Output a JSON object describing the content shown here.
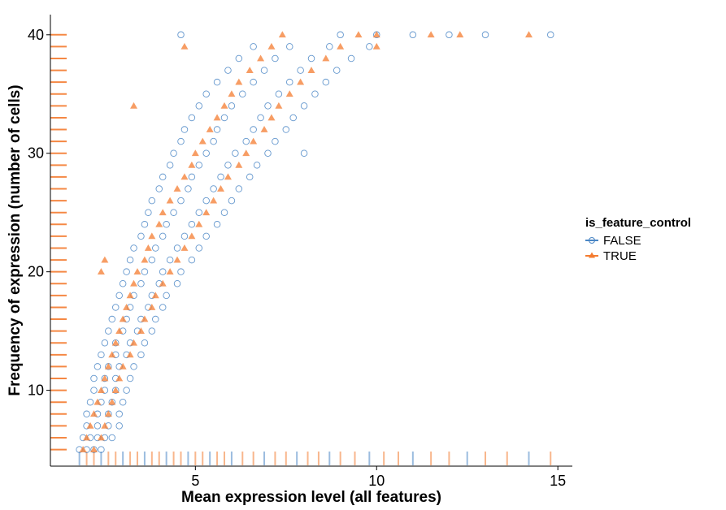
{
  "chart_data": {
    "type": "scatter",
    "xlabel": "Mean expression level (all features)",
    "ylabel": "Frequency of expression (number of cells)",
    "xlim": [
      1.0,
      15.4
    ],
    "ylim": [
      3.6,
      41.7
    ],
    "xticks": [
      5,
      10,
      15
    ],
    "yticks": [
      10,
      20,
      30,
      40
    ],
    "grid": false,
    "legend": {
      "title": "is_feature_control",
      "position": "right"
    },
    "colors": {
      "FALSE": "#4a86c5",
      "TRUE": "#f47c30"
    },
    "series": [
      {
        "name": "FALSE",
        "marker": "open-circle",
        "points": [
          [
            1.8,
            5
          ],
          [
            2.0,
            5
          ],
          [
            2.2,
            5
          ],
          [
            2.4,
            5
          ],
          [
            1.9,
            6
          ],
          [
            2.1,
            6
          ],
          [
            2.3,
            6
          ],
          [
            2.5,
            6
          ],
          [
            2.7,
            6
          ],
          [
            2.0,
            7
          ],
          [
            2.3,
            7
          ],
          [
            2.6,
            7
          ],
          [
            2.9,
            7
          ],
          [
            2.0,
            8
          ],
          [
            2.3,
            8
          ],
          [
            2.6,
            8
          ],
          [
            2.9,
            8
          ],
          [
            2.1,
            9
          ],
          [
            2.4,
            9
          ],
          [
            2.7,
            9
          ],
          [
            3.0,
            9
          ],
          [
            2.2,
            10
          ],
          [
            2.5,
            10
          ],
          [
            2.8,
            10
          ],
          [
            3.1,
            10
          ],
          [
            2.2,
            11
          ],
          [
            2.5,
            11
          ],
          [
            2.8,
            11
          ],
          [
            3.2,
            11
          ],
          [
            2.3,
            12
          ],
          [
            2.6,
            12
          ],
          [
            2.9,
            12
          ],
          [
            3.3,
            12
          ],
          [
            2.4,
            13
          ],
          [
            2.8,
            13
          ],
          [
            3.1,
            13
          ],
          [
            3.5,
            13
          ],
          [
            2.5,
            14
          ],
          [
            2.8,
            14
          ],
          [
            3.2,
            14
          ],
          [
            3.6,
            14
          ],
          [
            2.6,
            15
          ],
          [
            3.0,
            15
          ],
          [
            3.4,
            15
          ],
          [
            3.8,
            15
          ],
          [
            2.7,
            16
          ],
          [
            3.1,
            16
          ],
          [
            3.5,
            16
          ],
          [
            3.9,
            16
          ],
          [
            2.8,
            17
          ],
          [
            3.2,
            17
          ],
          [
            3.7,
            17
          ],
          [
            4.1,
            17
          ],
          [
            2.9,
            18
          ],
          [
            3.3,
            18
          ],
          [
            3.8,
            18
          ],
          [
            4.2,
            18
          ],
          [
            3.0,
            19
          ],
          [
            3.5,
            19
          ],
          [
            4.0,
            19
          ],
          [
            4.5,
            19
          ],
          [
            3.1,
            20
          ],
          [
            3.6,
            20
          ],
          [
            4.1,
            20
          ],
          [
            4.6,
            20
          ],
          [
            3.2,
            21
          ],
          [
            3.8,
            21
          ],
          [
            4.3,
            21
          ],
          [
            4.9,
            21
          ],
          [
            3.3,
            22
          ],
          [
            3.9,
            22
          ],
          [
            4.5,
            22
          ],
          [
            5.1,
            22
          ],
          [
            3.5,
            23
          ],
          [
            4.1,
            23
          ],
          [
            4.7,
            23
          ],
          [
            5.3,
            23
          ],
          [
            3.6,
            24
          ],
          [
            4.2,
            24
          ],
          [
            4.9,
            24
          ],
          [
            5.6,
            24
          ],
          [
            3.7,
            25
          ],
          [
            4.4,
            25
          ],
          [
            5.1,
            25
          ],
          [
            5.8,
            25
          ],
          [
            3.8,
            26
          ],
          [
            4.6,
            26
          ],
          [
            5.3,
            26
          ],
          [
            6.0,
            26
          ],
          [
            4.0,
            27
          ],
          [
            4.8,
            27
          ],
          [
            5.5,
            27
          ],
          [
            6.2,
            27
          ],
          [
            4.1,
            28
          ],
          [
            4.9,
            28
          ],
          [
            5.7,
            28
          ],
          [
            6.5,
            28
          ],
          [
            4.3,
            29
          ],
          [
            5.1,
            29
          ],
          [
            5.9,
            29
          ],
          [
            6.7,
            29
          ],
          [
            4.4,
            30
          ],
          [
            5.3,
            30
          ],
          [
            6.1,
            30
          ],
          [
            7.0,
            30
          ],
          [
            4.6,
            31
          ],
          [
            5.5,
            31
          ],
          [
            6.4,
            31
          ],
          [
            7.2,
            31
          ],
          [
            4.7,
            32
          ],
          [
            5.6,
            32
          ],
          [
            6.6,
            32
          ],
          [
            7.5,
            32
          ],
          [
            4.9,
            33
          ],
          [
            5.8,
            33
          ],
          [
            6.8,
            33
          ],
          [
            7.7,
            33
          ],
          [
            5.1,
            34
          ],
          [
            6.0,
            34
          ],
          [
            7.0,
            34
          ],
          [
            8.0,
            34
          ],
          [
            5.3,
            35
          ],
          [
            6.3,
            35
          ],
          [
            7.3,
            35
          ],
          [
            8.3,
            35
          ],
          [
            5.6,
            36
          ],
          [
            6.6,
            36
          ],
          [
            7.6,
            36
          ],
          [
            8.6,
            36
          ],
          [
            5.9,
            37
          ],
          [
            6.9,
            37
          ],
          [
            7.9,
            37
          ],
          [
            8.9,
            37
          ],
          [
            6.2,
            38
          ],
          [
            7.2,
            38
          ],
          [
            8.2,
            38
          ],
          [
            9.3,
            38
          ],
          [
            6.6,
            39
          ],
          [
            7.6,
            39
          ],
          [
            8.7,
            39
          ],
          [
            9.8,
            39
          ],
          [
            4.6,
            40
          ],
          [
            9.0,
            40
          ],
          [
            10.0,
            40
          ],
          [
            11.0,
            40
          ],
          [
            12.0,
            40
          ],
          [
            13.0,
            40
          ],
          [
            14.8,
            40
          ],
          [
            8.0,
            30
          ]
        ]
      },
      {
        "name": "TRUE",
        "marker": "filled-triangle",
        "points": [
          [
            1.9,
            5
          ],
          [
            2.2,
            5
          ],
          [
            2.0,
            6
          ],
          [
            2.4,
            6
          ],
          [
            2.1,
            7
          ],
          [
            2.5,
            7
          ],
          [
            2.2,
            8
          ],
          [
            2.6,
            8
          ],
          [
            2.3,
            9
          ],
          [
            2.7,
            9
          ],
          [
            2.4,
            10
          ],
          [
            2.8,
            10
          ],
          [
            2.5,
            11
          ],
          [
            2.9,
            11
          ],
          [
            2.6,
            12
          ],
          [
            3.0,
            12
          ],
          [
            2.7,
            13
          ],
          [
            3.2,
            13
          ],
          [
            2.8,
            14
          ],
          [
            3.3,
            14
          ],
          [
            2.9,
            15
          ],
          [
            3.5,
            15
          ],
          [
            3.0,
            16
          ],
          [
            3.6,
            16
          ],
          [
            3.1,
            17
          ],
          [
            3.8,
            17
          ],
          [
            3.2,
            18
          ],
          [
            3.9,
            18
          ],
          [
            3.3,
            19
          ],
          [
            4.1,
            19
          ],
          [
            2.4,
            20
          ],
          [
            3.4,
            20
          ],
          [
            4.3,
            20
          ],
          [
            2.5,
            21
          ],
          [
            3.6,
            21
          ],
          [
            4.5,
            21
          ],
          [
            3.7,
            22
          ],
          [
            4.7,
            22
          ],
          [
            3.8,
            23
          ],
          [
            4.9,
            23
          ],
          [
            4.0,
            24
          ],
          [
            5.1,
            24
          ],
          [
            4.1,
            25
          ],
          [
            5.3,
            25
          ],
          [
            4.3,
            26
          ],
          [
            5.5,
            26
          ],
          [
            4.5,
            27
          ],
          [
            5.7,
            27
          ],
          [
            4.7,
            28
          ],
          [
            5.9,
            28
          ],
          [
            4.9,
            29
          ],
          [
            6.2,
            29
          ],
          [
            5.0,
            30
          ],
          [
            6.4,
            30
          ],
          [
            5.2,
            31
          ],
          [
            6.6,
            31
          ],
          [
            5.4,
            32
          ],
          [
            6.9,
            32
          ],
          [
            5.6,
            33
          ],
          [
            7.1,
            33
          ],
          [
            5.8,
            34
          ],
          [
            7.3,
            34
          ],
          [
            3.3,
            34
          ],
          [
            6.0,
            35
          ],
          [
            7.6,
            35
          ],
          [
            6.2,
            36
          ],
          [
            7.9,
            36
          ],
          [
            6.5,
            37
          ],
          [
            8.2,
            37
          ],
          [
            6.8,
            38
          ],
          [
            8.6,
            38
          ],
          [
            4.7,
            39
          ],
          [
            7.1,
            39
          ],
          [
            9.0,
            39
          ],
          [
            7.4,
            40
          ],
          [
            9.5,
            40
          ],
          [
            10.0,
            40
          ],
          [
            11.5,
            40
          ],
          [
            12.3,
            40
          ],
          [
            14.2,
            40
          ],
          [
            10.0,
            39
          ]
        ]
      }
    ],
    "rug": {
      "y_ticks_value": [
        5,
        6,
        7,
        8,
        9,
        10,
        11,
        12,
        13,
        14,
        15,
        16,
        17,
        18,
        19,
        20,
        21,
        22,
        23,
        24,
        25,
        26,
        27,
        28,
        29,
        30,
        31,
        32,
        33,
        34,
        35,
        36,
        37,
        38,
        39,
        40
      ],
      "x_ticks_value": [
        1.8,
        2.0,
        2.2,
        2.4,
        2.6,
        2.8,
        3.0,
        3.2,
        3.4,
        3.6,
        3.8,
        4.0,
        4.2,
        4.4,
        4.6,
        4.8,
        5.0,
        5.2,
        5.4,
        5.6,
        5.8,
        6.0,
        6.3,
        6.6,
        6.9,
        7.2,
        7.5,
        7.8,
        8.1,
        8.4,
        8.7,
        9.0,
        9.4,
        9.8,
        10.2,
        10.6,
        11.0,
        11.5,
        12.0,
        12.5,
        13.0,
        13.6,
        14.2,
        14.8
      ]
    }
  }
}
